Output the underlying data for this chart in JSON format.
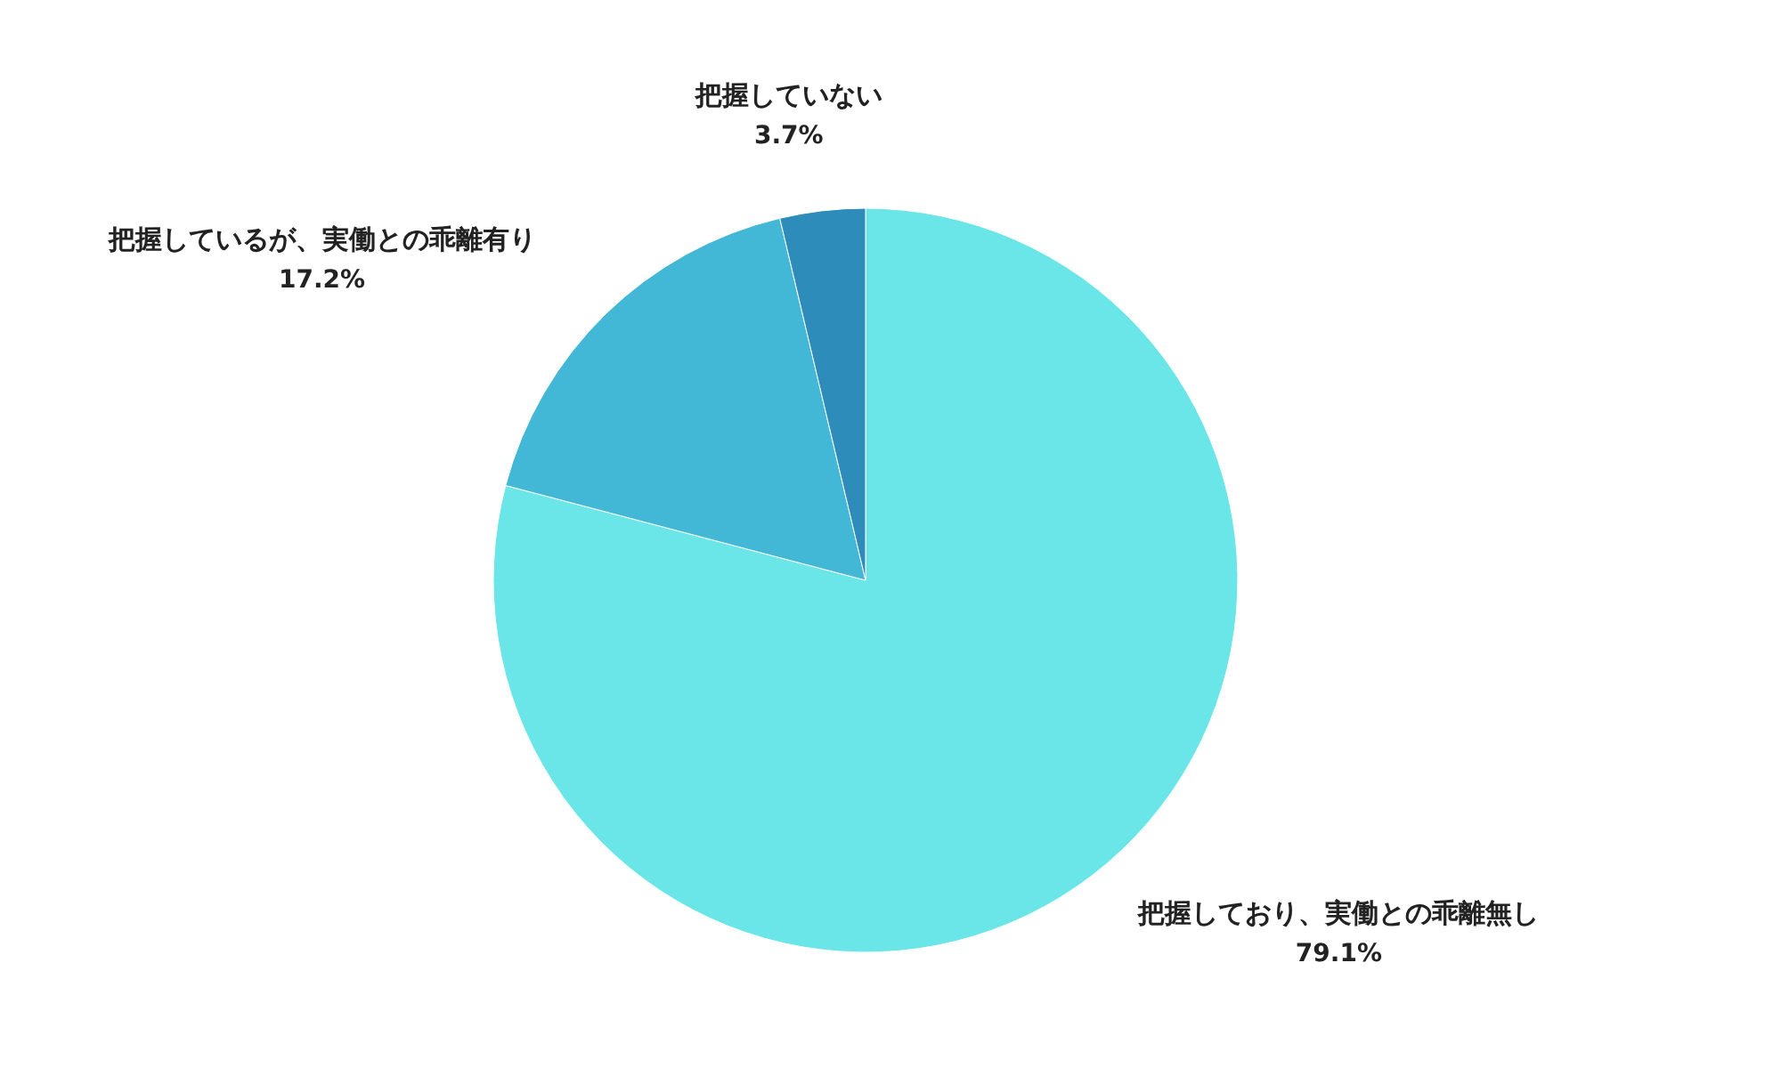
{
  "chart_data": {
    "type": "pie",
    "categories": [
      "把握しており、実働との乖離無し",
      "把握しているが、実働との乖離有り",
      "把握していない"
    ],
    "values": [
      79.1,
      17.2,
      3.7
    ],
    "colors": [
      "#6ae5e8",
      "#43b8d6",
      "#2e8cbb"
    ],
    "value_labels": [
      "79.1%",
      "17.2%",
      "3.7%"
    ]
  }
}
